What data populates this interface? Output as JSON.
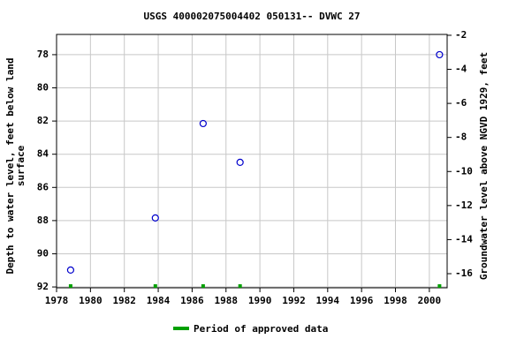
{
  "chart_data": {
    "type": "scatter",
    "title": "USGS 400002075004402 050131-- DVWC 27",
    "ylabel": [
      "Depth to water level, feet below land",
      "surface"
    ],
    "y2label": "Groundwater level above NGVD 1929, feet",
    "x": [
      1978.83,
      1983.83,
      1986.65,
      1988.83,
      2000.6
    ],
    "series": [
      {
        "name": "Depth to water level",
        "color": "#0000cc",
        "values": [
          90.98,
          87.84,
          82.15,
          84.49,
          78.0
        ]
      }
    ],
    "approved": {
      "name": "Period of approved data",
      "color": "#00a000",
      "x": [
        1978.83,
        1983.83,
        1986.65,
        1988.83,
        2000.6
      ]
    },
    "xlim": [
      1978,
      2001.05
    ],
    "xticks": [
      1978,
      1980,
      1982,
      1984,
      1986,
      1988,
      1990,
      1992,
      1994,
      1996,
      1998,
      2000
    ],
    "ylim": [
      92.05,
      76.78
    ],
    "yticks": [
      78,
      80,
      82,
      84,
      86,
      88,
      90,
      92
    ],
    "y2lim": [
      -16.83,
      -1.95
    ],
    "y2ticks": [
      -16,
      -14,
      -12,
      -10,
      -8,
      -6,
      -4,
      -2
    ],
    "grid": true,
    "inverted_y": true,
    "legend": "bottom"
  }
}
